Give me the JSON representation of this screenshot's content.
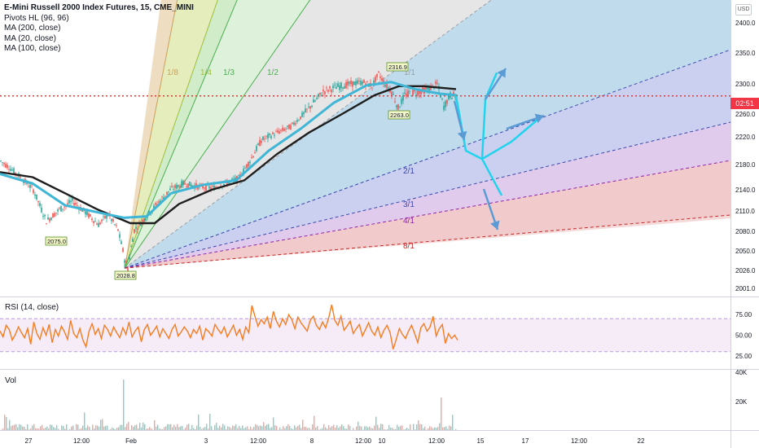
{
  "header": {
    "title": "E-Mini Russell 2000 Index Futures, 15, CME_MINI",
    "indicators": [
      "Pivots HL (96, 96)",
      "MA (200, close)",
      "MA (20, close)",
      "MA (100, close)"
    ],
    "currency": "USD"
  },
  "price_tag": "02:51",
  "rsi_title": "RSI (14, close)",
  "vol_title": "Vol",
  "colors": {
    "up": "#26a69a",
    "down": "#ef5350",
    "ma_black": "#1e1e1e",
    "ma_teal": "#3fb6d6",
    "rsi": "#f57c1f",
    "price_line": "#e53935",
    "path": "#22d3ee",
    "arrow": "#5b9bd5"
  },
  "chart_data": [
    {
      "type": "candlestick",
      "title": "E-Mini Russell 2000 Index Futures, 15, CME_MINI",
      "y_axis_ticks": [
        2400.0,
        2350.0,
        2300.0,
        2260.0,
        2220.0,
        2180.0,
        2140.0,
        2110.0,
        2080.0,
        2050.0,
        2026.0,
        2001.0
      ],
      "ylim": [
        1990,
        2425
      ],
      "x_axis_ticks": [
        "27",
        "12:00",
        "Feb",
        "3",
        "12:00",
        "8",
        "12:00",
        "10",
        "12:00",
        "15",
        "17",
        "12:00",
        "22"
      ],
      "last_price_label": "02:51",
      "last_price": 2284,
      "pivot_labels": [
        "2075.0",
        "2028.8",
        "2316.9",
        "2263.0"
      ],
      "fan_origin_price": 2028.8,
      "fan_lines": [
        "1/8",
        "1/4",
        "1/3",
        "1/2",
        "1/1",
        "2/1",
        "3/1",
        "4/1",
        "8/1"
      ],
      "price_path": [
        {
          "x": 0,
          "y": 2185
        },
        {
          "x": 5,
          "y": 2176
        },
        {
          "x": 12,
          "y": 2160
        },
        {
          "x": 20,
          "y": 2140
        },
        {
          "x": 28,
          "y": 2095
        },
        {
          "x": 36,
          "y": 2112
        },
        {
          "x": 44,
          "y": 2124
        },
        {
          "x": 52,
          "y": 2108
        },
        {
          "x": 60,
          "y": 2090
        },
        {
          "x": 66,
          "y": 2105
        },
        {
          "x": 72,
          "y": 2082
        },
        {
          "x": 76,
          "y": 2040
        },
        {
          "x": 78,
          "y": 2029
        },
        {
          "x": 82,
          "y": 2082
        },
        {
          "x": 88,
          "y": 2098
        },
        {
          "x": 96,
          "y": 2120
        },
        {
          "x": 104,
          "y": 2140
        },
        {
          "x": 112,
          "y": 2150
        },
        {
          "x": 122,
          "y": 2145
        },
        {
          "x": 130,
          "y": 2143
        },
        {
          "x": 138,
          "y": 2150
        },
        {
          "x": 146,
          "y": 2158
        },
        {
          "x": 154,
          "y": 2190
        },
        {
          "x": 160,
          "y": 2215
        },
        {
          "x": 170,
          "y": 2228
        },
        {
          "x": 178,
          "y": 2238
        },
        {
          "x": 186,
          "y": 2260
        },
        {
          "x": 192,
          "y": 2275
        },
        {
          "x": 198,
          "y": 2290
        },
        {
          "x": 206,
          "y": 2296
        },
        {
          "x": 214,
          "y": 2300
        },
        {
          "x": 222,
          "y": 2303
        },
        {
          "x": 228,
          "y": 2298
        },
        {
          "x": 232,
          "y": 2316
        },
        {
          "x": 236,
          "y": 2300
        },
        {
          "x": 240,
          "y": 2290
        },
        {
          "x": 244,
          "y": 2268
        },
        {
          "x": 248,
          "y": 2285
        },
        {
          "x": 252,
          "y": 2288
        },
        {
          "x": 258,
          "y": 2290
        },
        {
          "x": 264,
          "y": 2295
        },
        {
          "x": 268,
          "y": 2300
        },
        {
          "x": 272,
          "y": 2270
        },
        {
          "x": 276,
          "y": 2285
        },
        {
          "x": 280,
          "y": 2284
        }
      ],
      "ma_20": [
        {
          "x": 0,
          "y": 2165
        },
        {
          "x": 20,
          "y": 2150
        },
        {
          "x": 40,
          "y": 2118
        },
        {
          "x": 60,
          "y": 2108
        },
        {
          "x": 76,
          "y": 2100
        },
        {
          "x": 90,
          "y": 2102
        },
        {
          "x": 105,
          "y": 2135
        },
        {
          "x": 125,
          "y": 2148
        },
        {
          "x": 145,
          "y": 2155
        },
        {
          "x": 165,
          "y": 2200
        },
        {
          "x": 185,
          "y": 2235
        },
        {
          "x": 205,
          "y": 2275
        },
        {
          "x": 225,
          "y": 2298
        },
        {
          "x": 240,
          "y": 2303
        },
        {
          "x": 255,
          "y": 2293
        },
        {
          "x": 270,
          "y": 2287
        },
        {
          "x": 280,
          "y": 2285
        }
      ],
      "ma_100": [
        {
          "x": 0,
          "y": 2168
        },
        {
          "x": 20,
          "y": 2160
        },
        {
          "x": 40,
          "y": 2135
        },
        {
          "x": 60,
          "y": 2112
        },
        {
          "x": 80,
          "y": 2092
        },
        {
          "x": 95,
          "y": 2092
        },
        {
          "x": 110,
          "y": 2120
        },
        {
          "x": 130,
          "y": 2140
        },
        {
          "x": 150,
          "y": 2155
        },
        {
          "x": 170,
          "y": 2195
        },
        {
          "x": 190,
          "y": 2228
        },
        {
          "x": 210,
          "y": 2260
        },
        {
          "x": 230,
          "y": 2285
        },
        {
          "x": 245,
          "y": 2297
        },
        {
          "x": 260,
          "y": 2297
        },
        {
          "x": 280,
          "y": 2293
        }
      ],
      "projection_path": [
        {
          "x": 280,
          "y": 2284
        },
        {
          "x": 286,
          "y": 2200
        },
        {
          "x": 296,
          "y": 2188
        },
        {
          "x": 308,
          "y": 2132
        }
      ],
      "projection_branches": [
        {
          "x": 296,
          "y": 2188
        },
        {
          "x": 298,
          "y": 2280
        },
        {
          "x": 305,
          "y": 2318
        }
      ],
      "projection_branch_2": [
        {
          "x": 296,
          "y": 2188
        },
        {
          "x": 314,
          "y": 2213
        },
        {
          "x": 330,
          "y": 2250
        }
      ]
    },
    {
      "type": "line",
      "title": "RSI (14, close)",
      "y_axis_ticks": [
        75.0,
        50.0,
        25.0
      ],
      "ylim": [
        10,
        95
      ],
      "band": [
        30,
        70
      ],
      "values": [
        55,
        48,
        62,
        57,
        44,
        51,
        60,
        53,
        47,
        58,
        39,
        66,
        52,
        45,
        59,
        50,
        63,
        41,
        57,
        49,
        61,
        54,
        45,
        68,
        52,
        47,
        58,
        44,
        36,
        55,
        64,
        51,
        58,
        46,
        62,
        57,
        49,
        60,
        53,
        47,
        59,
        51,
        66,
        48,
        55,
        60,
        42,
        57,
        63,
        50,
        55,
        61,
        48,
        58,
        52,
        46,
        57,
        63,
        49,
        54,
        60,
        55,
        47,
        57,
        52,
        61,
        44,
        58,
        54,
        49,
        63,
        57,
        52,
        60,
        48,
        55,
        62,
        50,
        57,
        45,
        60,
        53,
        86,
        73,
        61,
        69,
        64,
        72,
        58,
        79,
        67,
        60,
        70,
        63,
        75,
        69,
        58,
        72,
        65,
        60,
        55,
        68,
        73,
        62,
        57,
        66,
        59,
        71,
        87,
        68,
        62,
        73,
        56,
        61,
        67,
        52,
        58,
        63,
        49,
        57,
        65,
        55,
        50,
        60,
        47,
        56,
        62,
        53,
        33,
        45,
        58,
        51,
        46,
        55,
        62,
        52,
        41,
        59,
        64,
        55,
        60,
        73,
        49,
        58,
        63,
        40,
        52,
        46,
        50,
        44
      ]
    },
    {
      "type": "bar",
      "title": "Vol",
      "y_axis_ticks": [
        "40K",
        "20K"
      ],
      "ylim": [
        0,
        40000
      ],
      "x_axis_ticks": [
        "27",
        "12:00",
        "Feb",
        "3",
        "12:00",
        "8",
        "12:00",
        "10",
        "12:00",
        "15",
        "17",
        "12:00",
        "22"
      ]
    }
  ]
}
